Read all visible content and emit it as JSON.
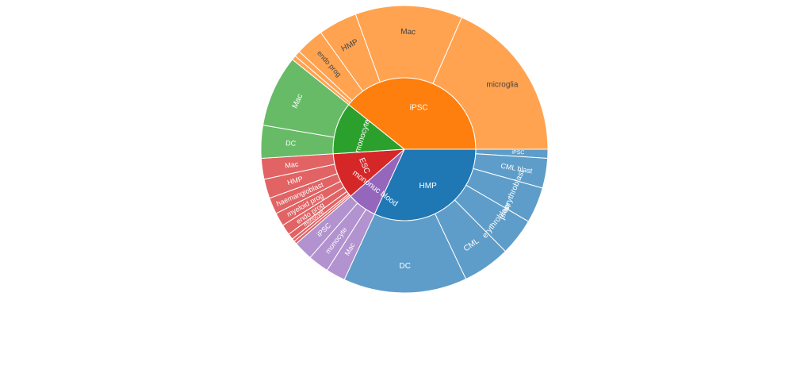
{
  "chart_data": {
    "type": "sunburst",
    "title": "",
    "colors": {
      "HMP": "#1f77b4",
      "iPSC": "#ff7f0e",
      "monocyte": "#2ca02c",
      "ESC": "#d62728",
      "mononuc blood": "#9467bd"
    },
    "parents": [
      {
        "label": "HMP",
        "value": 19,
        "children": [
          {
            "label": "iPSC",
            "value": 0.6
          },
          {
            "label": "CML blast",
            "value": 2.0
          },
          {
            "label": "proerythroblast",
            "value": 2.4
          },
          {
            "label": "erythroblast",
            "value": 2.5
          },
          {
            "label": "CML",
            "value": 3.2
          },
          {
            "label": "DC",
            "value": 8.3
          }
        ]
      },
      {
        "label": "mononuc blood",
        "value": 4,
        "children": [
          {
            "label": "Mac",
            "value": 1.3
          },
          {
            "label": "monocyte",
            "value": 1.4
          },
          {
            "label": "iPSC",
            "value": 1.3
          }
        ]
      },
      {
        "label": "ESC",
        "value": 6.2,
        "children": [
          {
            "label": "",
            "value": 0.2
          },
          {
            "label": "",
            "value": 0.2
          },
          {
            "label": "monocyte",
            "value": 0.4
          },
          {
            "label": "endo prog",
            "value": 0.7
          },
          {
            "label": "myeloid prog",
            "value": 0.9
          },
          {
            "label": "haemangioblast",
            "value": 1.1
          },
          {
            "label": "HMP",
            "value": 1.3
          },
          {
            "label": "Mac",
            "value": 1.4
          }
        ]
      },
      {
        "label": "monocyte",
        "value": 7.0,
        "children": [
          {
            "label": "DC",
            "value": 2.2
          },
          {
            "label": "Mac",
            "value": 4.8
          }
        ]
      },
      {
        "label": "iPSC",
        "value": 23.4,
        "children": [
          {
            "label": "",
            "value": 0.3
          },
          {
            "label": "",
            "value": 0.4
          },
          {
            "label": "endo prog",
            "value": 1.9
          },
          {
            "label": "HMP",
            "value": 2.6
          },
          {
            "label": "Mac",
            "value": 7.2
          },
          {
            "label": "microglia",
            "value": 11.0
          }
        ]
      }
    ]
  }
}
